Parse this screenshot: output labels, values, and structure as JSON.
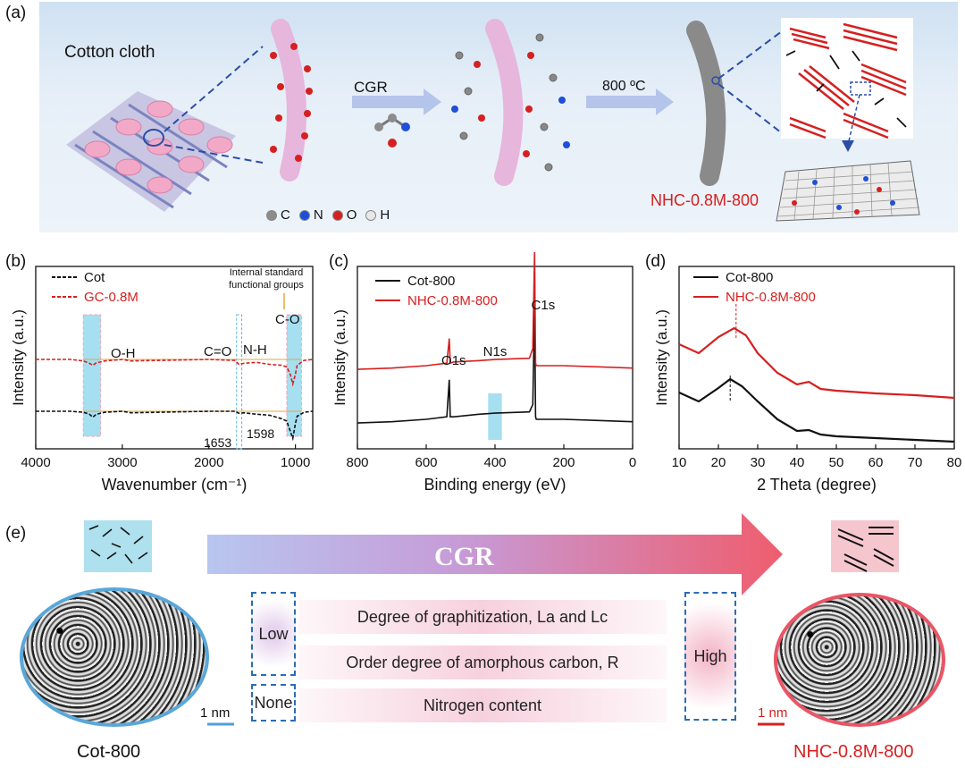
{
  "panel_labels": {
    "a": "(a)",
    "b": "(b)",
    "c": "(c)",
    "d": "(d)",
    "e": "(e)"
  },
  "panel_a": {
    "cotton_label": "Cotton cloth",
    "arrow1_label": "CGR",
    "arrow2_label": "800 ºC",
    "product_label": "NHC-0.8M-800",
    "atom_legend": [
      {
        "symbol": "C",
        "color": "#8c8c8c"
      },
      {
        "symbol": "N",
        "color": "#1f4fd6"
      },
      {
        "symbol": "O",
        "color": "#d62020"
      },
      {
        "symbol": "H",
        "color": "#e8e8e8"
      }
    ]
  },
  "chart_data": [
    {
      "panel": "b",
      "type": "line",
      "xlabel": "Wavenumber (cm⁻¹)",
      "ylabel": "Intensity (a.u.)",
      "xlim": [
        4000,
        800
      ],
      "xticks": [
        4000,
        3000,
        2000,
        1000
      ],
      "series": [
        {
          "name": "Cot",
          "color": "#111111",
          "style": "dashed",
          "offset": 0,
          "x": [
            4000,
            3600,
            3450,
            3380,
            3340,
            3300,
            3200,
            3000,
            2900,
            2000,
            1700,
            1653,
            1598,
            1450,
            1300,
            1160,
            1100,
            1060,
            1030,
            1000,
            980,
            900,
            800
          ],
          "y": [
            0,
            0,
            -0.02,
            -0.06,
            -0.12,
            -0.06,
            -0.02,
            0,
            -0.03,
            0,
            0,
            -0.04,
            -0.03,
            -0.06,
            -0.08,
            -0.15,
            -0.2,
            -0.4,
            -0.55,
            -0.25,
            -0.1,
            -0.02,
            0
          ]
        },
        {
          "name": "GC-0.8M",
          "color": "#d62020",
          "style": "dashed",
          "offset": 1,
          "x": [
            4000,
            3600,
            3450,
            3380,
            3340,
            3300,
            3200,
            3000,
            2900,
            2000,
            1700,
            1653,
            1598,
            1450,
            1300,
            1160,
            1100,
            1060,
            1030,
            1000,
            980,
            900,
            800
          ],
          "y": [
            0,
            0,
            -0.03,
            -0.08,
            -0.12,
            -0.07,
            -0.03,
            0,
            -0.03,
            0,
            -0.02,
            -0.1,
            -0.08,
            -0.06,
            -0.1,
            -0.12,
            -0.15,
            -0.3,
            -0.5,
            -0.3,
            -0.12,
            -0.02,
            0
          ]
        }
      ],
      "annotations": [
        "O-H",
        "C=O",
        "N-H",
        "C-O",
        "1653",
        "1598",
        "Internal standard",
        "functional groups"
      ]
    },
    {
      "panel": "c",
      "type": "line",
      "xlabel": "Binding energy (eV)",
      "ylabel": "Intensity (a.u.)",
      "xlim": [
        800,
        0
      ],
      "xticks": [
        800,
        600,
        400,
        200,
        0
      ],
      "series": [
        {
          "name": "Cot-800",
          "color": "#111111",
          "offset": 0,
          "x": [
            800,
            700,
            600,
            540,
            533,
            530,
            520,
            450,
            400,
            300,
            290,
            285,
            282,
            280,
            200,
            100,
            0
          ],
          "y": [
            0.05,
            0.06,
            0.08,
            0.1,
            0.4,
            0.1,
            0.1,
            0.12,
            0.13,
            0.14,
            0.2,
            1.0,
            0.1,
            0.08,
            0.08,
            0.07,
            0.06
          ]
        },
        {
          "name": "NHC-0.8M-800",
          "color": "#d62020",
          "offset": 1,
          "x": [
            800,
            700,
            600,
            540,
            533,
            530,
            520,
            450,
            400,
            300,
            290,
            285,
            282,
            280,
            200,
            100,
            0
          ],
          "y": [
            0.05,
            0.06,
            0.08,
            0.1,
            0.3,
            0.1,
            0.11,
            0.12,
            0.13,
            0.14,
            0.22,
            1.0,
            0.1,
            0.08,
            0.08,
            0.07,
            0.06
          ]
        }
      ],
      "annotations": [
        "O1s",
        "N1s",
        "C1s"
      ]
    },
    {
      "panel": "d",
      "type": "line",
      "xlabel": "2 Theta (degree)",
      "ylabel": "Intensity (a.u.)",
      "xlim": [
        10,
        80
      ],
      "xticks": [
        10,
        20,
        30,
        40,
        50,
        60,
        70,
        80
      ],
      "series": [
        {
          "name": "Cot-800",
          "color": "#111111",
          "offset": 0,
          "x": [
            10,
            15,
            20,
            23,
            26,
            30,
            35,
            40,
            43,
            46,
            50,
            60,
            70,
            80
          ],
          "y": [
            0.55,
            0.45,
            0.6,
            0.7,
            0.62,
            0.45,
            0.25,
            0.12,
            0.13,
            0.08,
            0.06,
            0.04,
            0.02,
            0
          ]
        },
        {
          "name": "NHC-0.8M-800",
          "color": "#d62020",
          "offset": 1,
          "x": [
            10,
            15,
            20,
            24,
            27,
            30,
            35,
            40,
            43,
            46,
            50,
            60,
            70,
            80
          ],
          "y": [
            0.6,
            0.5,
            0.68,
            0.78,
            0.7,
            0.5,
            0.28,
            0.15,
            0.18,
            0.1,
            0.08,
            0.05,
            0.03,
            0
          ]
        }
      ]
    }
  ],
  "panel_e": {
    "arrow_label": "CGR",
    "rows": [
      "Degree of graphitization, La and Lc",
      "Order degree of amorphous carbon, R",
      "Nitrogen content"
    ],
    "low": "Low",
    "none": "None",
    "high": "High",
    "scale_left": "1 nm",
    "scale_right": "1 nm",
    "left_label": "Cot-800",
    "right_label": "NHC-0.8M-800"
  }
}
